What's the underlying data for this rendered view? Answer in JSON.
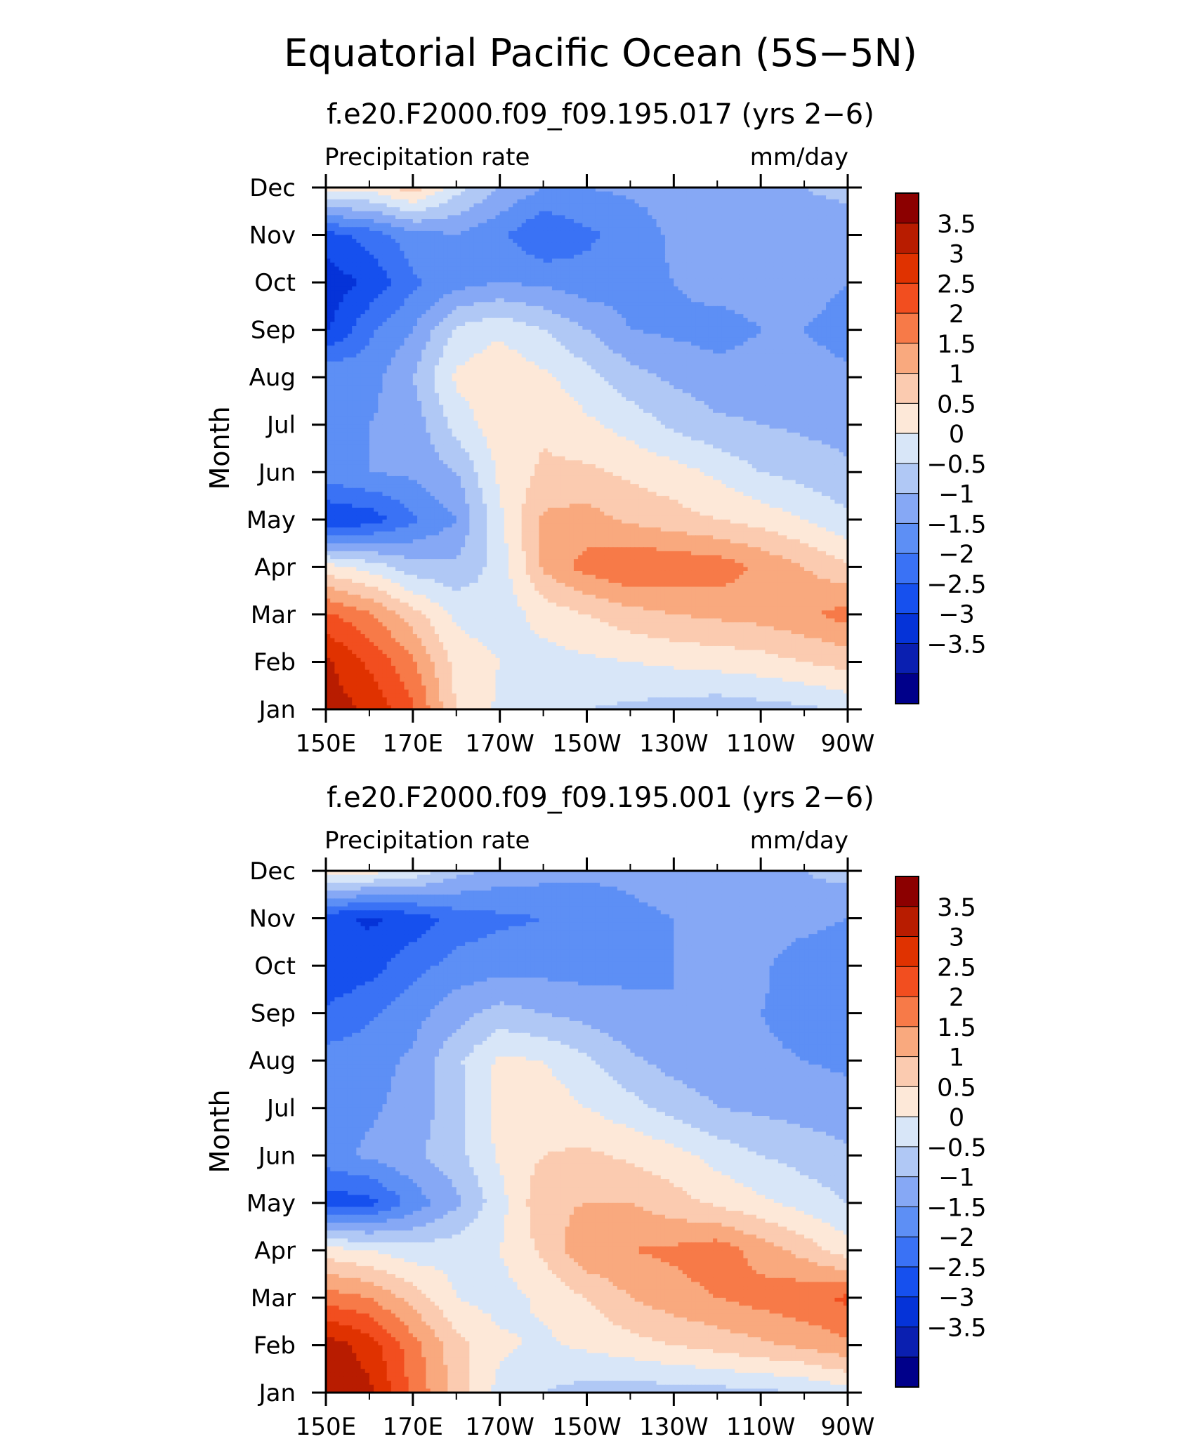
{
  "figure_title": "Equatorial Pacific Ocean (5S−5N)",
  "chart_data": [
    {
      "type": "heatmap",
      "title": "f.e20.F2000.f09_f09.195.017 (yrs 2−6)",
      "left_label": "Precipitation rate",
      "right_label": "mm/day",
      "ylabel": "Month",
      "x_ticks": [
        "150E",
        "170E",
        "170W",
        "150W",
        "130W",
        "110W",
        "90W"
      ],
      "y_ticks": [
        "Jan",
        "Feb",
        "Mar",
        "Apr",
        "May",
        "Jun",
        "Jul",
        "Aug",
        "Sep",
        "Oct",
        "Nov",
        "Dec"
      ],
      "colorbar_labels": [
        "3.5",
        "3",
        "2.5",
        "2",
        "1.5",
        "1",
        "0.5",
        "0",
        "−0.5",
        "−1",
        "−1.5",
        "−2",
        "−2.5",
        "−3",
        "−3.5"
      ],
      "levels": [
        -3.5,
        -3,
        -2.5,
        -2,
        -1.5,
        -1,
        -0.5,
        0,
        0.5,
        1,
        1.5,
        2,
        2.5,
        3,
        3.5
      ],
      "colors": [
        "#00008a",
        "#0a1fb0",
        "#0533d8",
        "#1650ee",
        "#3a72f5",
        "#5d8ff5",
        "#86a8f5",
        "#b0c8f5",
        "#d8e6f8",
        "#fde8d8",
        "#fbcbb0",
        "#f9a97e",
        "#f77a48",
        "#f24e1f",
        "#e03200",
        "#b81c00",
        "#8c0000"
      ],
      "x": [
        150,
        160,
        170,
        180,
        190,
        200,
        210,
        220,
        230,
        240,
        250,
        260,
        270
      ],
      "y": [
        1,
        2,
        3,
        4,
        5,
        6,
        7,
        8,
        9,
        10,
        11,
        12
      ],
      "z": [
        [
          3.8,
          3.4,
          2.6,
          1.0,
          0.4,
          0.2,
          0.0,
          -0.1,
          -0.2,
          -0.3,
          -0.2,
          -0.1,
          0.1
        ],
        [
          3.6,
          2.9,
          2.1,
          0.8,
          0.5,
          0.3,
          0.4,
          0.5,
          0.6,
          0.7,
          0.8,
          1.0,
          1.2
        ],
        [
          2.6,
          2.1,
          1.2,
          0.4,
          0.2,
          0.7,
          1.0,
          1.3,
          1.5,
          1.6,
          1.7,
          1.9,
          2.2
        ],
        [
          0.7,
          0.3,
          -0.3,
          -0.4,
          0.2,
          1.6,
          2.2,
          2.5,
          2.4,
          2.3,
          1.9,
          1.5,
          1.1
        ],
        [
          -2.5,
          -2.3,
          -1.6,
          -1.0,
          0.4,
          1.6,
          1.7,
          1.4,
          1.2,
          1.0,
          0.8,
          0.5,
          0.1
        ],
        [
          -1.2,
          -1.0,
          -0.9,
          -0.5,
          0.6,
          1.1,
          1.1,
          0.9,
          0.7,
          0.4,
          0.0,
          -0.2,
          -0.4
        ],
        [
          -1.1,
          -1.0,
          -0.8,
          0.2,
          0.8,
          0.9,
          0.6,
          0.3,
          -0.1,
          -0.4,
          -0.5,
          -0.6,
          -0.7
        ],
        [
          -1.0,
          -1.2,
          -0.5,
          0.6,
          0.9,
          0.6,
          0.2,
          -0.3,
          -0.6,
          -0.8,
          -0.8,
          -0.8,
          -0.9
        ],
        [
          -2.6,
          -1.6,
          -1.0,
          0.1,
          0.4,
          0.0,
          -0.5,
          -1.0,
          -1.1,
          -1.2,
          -1.0,
          -1.0,
          -1.2
        ],
        [
          -2.8,
          -2.4,
          -1.6,
          -1.2,
          -1.0,
          -1.1,
          -1.3,
          -1.2,
          -1.0,
          -0.8,
          -0.8,
          -0.8,
          -1.0
        ],
        [
          -2.2,
          -1.8,
          -1.2,
          -1.0,
          -1.4,
          -2.0,
          -1.6,
          -1.3,
          -0.9,
          -0.8,
          -0.8,
          -0.8,
          -0.9
        ],
        [
          0.8,
          0.7,
          1.3,
          0.2,
          -0.5,
          -1.0,
          -1.0,
          -0.9,
          -0.8,
          -0.8,
          -0.7,
          -0.5,
          -0.3
        ]
      ]
    },
    {
      "type": "heatmap",
      "title": "f.e20.F2000.f09_f09.195.001 (yrs 2−6)",
      "left_label": "Precipitation rate",
      "right_label": "mm/day",
      "ylabel": "Month",
      "x_ticks": [
        "150E",
        "170E",
        "170W",
        "150W",
        "130W",
        "110W",
        "90W"
      ],
      "y_ticks": [
        "Jan",
        "Feb",
        "Mar",
        "Apr",
        "May",
        "Jun",
        "Jul",
        "Aug",
        "Sep",
        "Oct",
        "Nov",
        "Dec"
      ],
      "colorbar_labels": [
        "3.5",
        "3",
        "2.5",
        "2",
        "1.5",
        "1",
        "0.5",
        "0",
        "−0.5",
        "−1",
        "−1.5",
        "−2",
        "−2.5",
        "−3",
        "−3.5"
      ],
      "levels": [
        -3.5,
        -3,
        -2.5,
        -2,
        -1.5,
        -1,
        -0.5,
        0,
        0.5,
        1,
        1.5,
        2,
        2.5,
        3,
        3.5
      ],
      "colors": [
        "#00008a",
        "#0a1fb0",
        "#0533d8",
        "#1650ee",
        "#3a72f5",
        "#5d8ff5",
        "#86a8f5",
        "#b0c8f5",
        "#d8e6f8",
        "#fde8d8",
        "#fbcbb0",
        "#f9a97e",
        "#f77a48",
        "#f24e1f",
        "#e03200",
        "#b81c00",
        "#8c0000"
      ],
      "x": [
        150,
        160,
        170,
        180,
        190,
        200,
        210,
        220,
        230,
        240,
        250,
        260,
        270
      ],
      "y": [
        1,
        2,
        3,
        4,
        5,
        6,
        7,
        8,
        9,
        10,
        11,
        12
      ],
      "z": [
        [
          3.8,
          3.6,
          2.4,
          1.3,
          0.3,
          0.0,
          -0.2,
          -0.3,
          -0.2,
          -0.2,
          -0.1,
          0.0,
          0.3
        ],
        [
          3.8,
          3.3,
          2.2,
          1.2,
          0.6,
          0.4,
          0.6,
          0.8,
          1.0,
          1.2,
          1.4,
          1.6,
          1.9
        ],
        [
          2.3,
          2.0,
          1.3,
          0.5,
          0.3,
          0.6,
          1.0,
          1.5,
          1.8,
          2.0,
          2.2,
          2.4,
          2.6
        ],
        [
          0.7,
          0.5,
          0.2,
          0.3,
          0.5,
          1.1,
          1.9,
          2.0,
          2.1,
          2.3,
          1.8,
          1.3,
          0.7
        ],
        [
          -2.3,
          -2.2,
          -1.3,
          -0.6,
          0.3,
          1.4,
          1.5,
          1.5,
          1.2,
          0.9,
          0.6,
          0.3,
          0.0
        ],
        [
          -1.2,
          -0.9,
          -0.6,
          -0.2,
          0.6,
          1.0,
          1.1,
          0.9,
          0.7,
          0.3,
          0.0,
          -0.2,
          -0.4
        ],
        [
          -1.1,
          -1.1,
          -0.8,
          -0.2,
          0.7,
          0.8,
          0.5,
          0.2,
          -0.2,
          -0.5,
          -0.6,
          -0.7,
          -0.8
        ],
        [
          -1.3,
          -1.2,
          -0.9,
          -0.1,
          0.6,
          0.5,
          0.1,
          -0.4,
          -0.7,
          -0.8,
          -0.9,
          -1.0,
          -1.1
        ],
        [
          -1.9,
          -1.6,
          -1.2,
          -0.7,
          -0.3,
          -0.5,
          -0.7,
          -0.9,
          -1.0,
          -1.0,
          -1.0,
          -1.2,
          -1.3
        ],
        [
          -2.5,
          -2.2,
          -1.7,
          -1.3,
          -1.2,
          -1.2,
          -1.2,
          -1.1,
          -1.0,
          -0.9,
          -0.9,
          -1.3,
          -1.5
        ],
        [
          -2.3,
          -2.6,
          -2.3,
          -1.8,
          -1.6,
          -1.5,
          -1.3,
          -1.1,
          -1.0,
          -0.8,
          -0.8,
          -0.8,
          -1.0
        ],
        [
          0.9,
          0.7,
          0.4,
          -0.3,
          -0.7,
          -0.8,
          -0.9,
          -0.9,
          -0.8,
          -0.8,
          -0.7,
          -0.5,
          -0.3
        ]
      ]
    }
  ]
}
